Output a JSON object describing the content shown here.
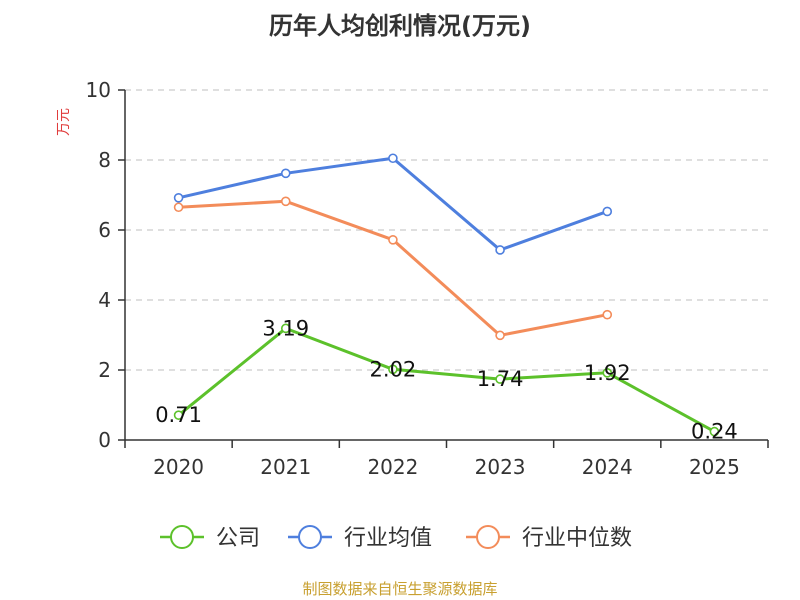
{
  "chart_data": {
    "type": "line",
    "title": "历年人均创利情况(万元)",
    "ylabel": "万元",
    "xlabel": "",
    "categories": [
      "2020",
      "2021",
      "2022",
      "2023",
      "2024",
      "2025"
    ],
    "ylim": [
      0,
      10
    ],
    "yticks": [
      "0",
      "2",
      "4",
      "6",
      "8",
      "10"
    ],
    "grid": true,
    "legend_position": "bottom",
    "series": [
      {
        "name": "公司",
        "color": "#5cc12b",
        "values": [
          0.71,
          3.19,
          2.02,
          1.74,
          1.92,
          0.24
        ],
        "labels": [
          "0.71",
          "3.19",
          "2.02",
          "1.74",
          "1.92",
          "0.24"
        ]
      },
      {
        "name": "行业均值",
        "color": "#4e7fde",
        "values": [
          6.92,
          7.62,
          8.05,
          5.43,
          6.53,
          null
        ]
      },
      {
        "name": "行业中位数",
        "color": "#f38c5a",
        "values": [
          6.65,
          6.82,
          5.72,
          2.99,
          3.58,
          null
        ]
      }
    ]
  },
  "source": "制图数据来自恒生聚源数据库",
  "colors": {
    "title": "#333333",
    "ylabel": "#e03c3c",
    "axis": "#333333",
    "grid": "#cccccc",
    "source": "#c8a030"
  }
}
